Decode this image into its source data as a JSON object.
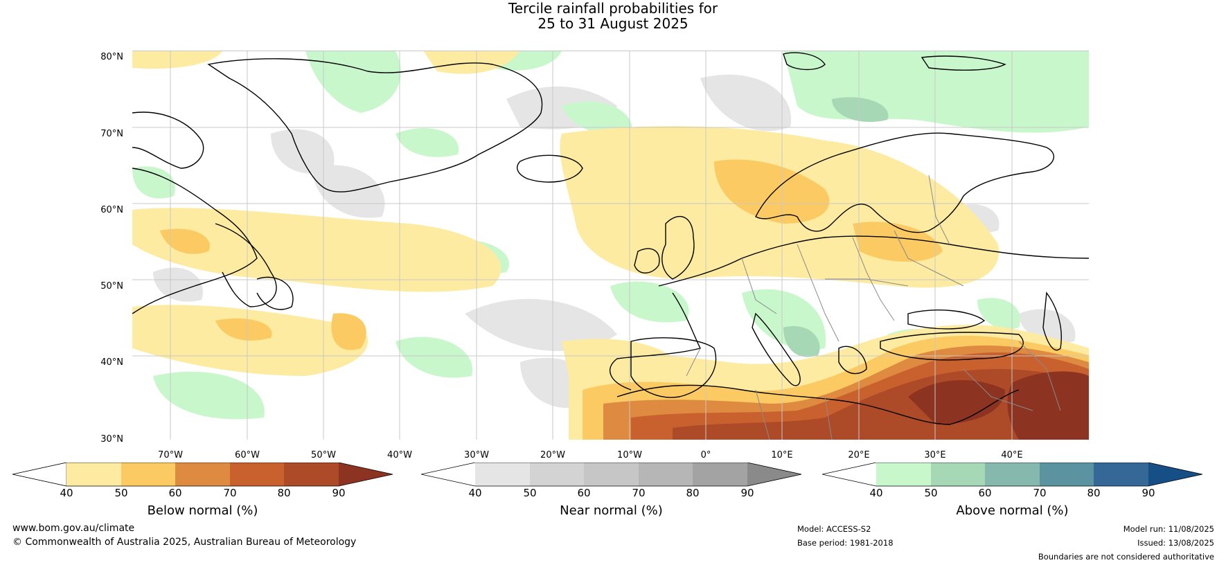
{
  "title": {
    "line1": "Tercile rainfall probabilities for",
    "line2": "25 to 31 August 2025"
  },
  "latitude_labels": [
    "80°N",
    "70°N",
    "60°N",
    "50°N",
    "40°N",
    "30°N"
  ],
  "longitude_labels": [
    "70°W",
    "60°W",
    "50°W",
    "40°W",
    "30°W",
    "20°W",
    "10°W",
    "0°",
    "10°E",
    "20°E",
    "30°E",
    "40°E"
  ],
  "colorbars": [
    {
      "label": "Below normal (%)",
      "ticks": [
        "40",
        "50",
        "60",
        "70",
        "80",
        "90"
      ],
      "colors": [
        "#ffffff",
        "#fdeba1",
        "#fbca62",
        "#de8b41",
        "#c9612f",
        "#ad4a28",
        "#8c3321"
      ]
    },
    {
      "label": "Near normal (%)",
      "ticks": [
        "40",
        "50",
        "60",
        "70",
        "80",
        "90"
      ],
      "colors": [
        "#ffffff",
        "#e5e5e5",
        "#d3d3d3",
        "#c6c6c6",
        "#b6b6b6",
        "#a3a3a3",
        "#8a8a8a"
      ]
    },
    {
      "label": "Above normal (%)",
      "ticks": [
        "40",
        "50",
        "60",
        "70",
        "80",
        "90"
      ],
      "colors": [
        "#ffffff",
        "#c9f7cc",
        "#a7d8b6",
        "#87b8ad",
        "#5c93a0",
        "#356897",
        "#164f86"
      ]
    }
  ],
  "footer": {
    "website": "www.bom.gov.au/climate",
    "copyright": "© Commonwealth of Australia 2025, Australian Bureau of Meteorology",
    "model": "Model: ACCESS-S2",
    "base_period": "Base period: 1981-2018",
    "model_run": "Model run: 11/08/2025",
    "issued": "Issued: 13/08/2025",
    "disclaimer": "Boundaries are not considered authoritative"
  }
}
